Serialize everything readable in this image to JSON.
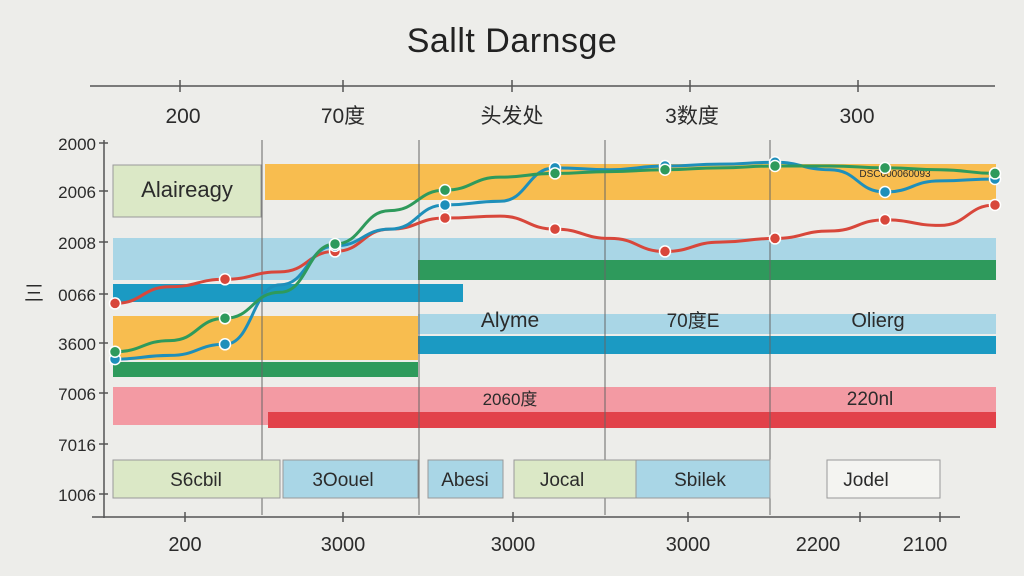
{
  "chart_data": {
    "type": "line",
    "title": "Sallt Darnsge",
    "top_labels": [
      "200",
      "70度",
      "头发处",
      "3数度",
      "300"
    ],
    "bottom_labels": [
      "200",
      "3000",
      "3000",
      "3000",
      "2200",
      "2100"
    ],
    "y_labels": [
      "2000",
      "2006",
      "2008",
      "0066",
      "3600",
      "7006",
      "7016",
      "1006"
    ],
    "y_side_mark": "三",
    "x": [
      0,
      1,
      2,
      3,
      4,
      5,
      6,
      7,
      8,
      9,
      10,
      11,
      12,
      13,
      14,
      15,
      16
    ],
    "series": [
      {
        "color": "#d8473b",
        "values": [
          2.6,
          3.05,
          3.25,
          3.45,
          4.0,
          4.6,
          4.9,
          4.95,
          4.6,
          4.35,
          4.0,
          4.25,
          4.35,
          4.55,
          4.85,
          4.7,
          5.25
        ]
      },
      {
        "color": "#1e8fba",
        "values": [
          1.1,
          1.2,
          1.5,
          3.1,
          4.15,
          4.6,
          5.25,
          5.35,
          6.25,
          6.2,
          6.3,
          6.35,
          6.4,
          6.2,
          5.6,
          5.9,
          5.95
        ]
      },
      {
        "color": "#2e9a5c",
        "values": [
          1.3,
          1.6,
          2.2,
          2.9,
          4.2,
          5.1,
          5.65,
          6.0,
          6.1,
          6.15,
          6.2,
          6.25,
          6.3,
          6.3,
          6.25,
          6.2,
          6.1
        ]
      }
    ],
    "band_labels": {
      "top_left": "Alaireagy",
      "top_right": "DSC000060093",
      "mid1": "Alyme",
      "mid2": "70度E",
      "mid3": "Olierg",
      "pink1": "2060度",
      "pink2": "220nl"
    },
    "box_labels": [
      "S6cbil",
      "3Oouel",
      "Abesi",
      "Jocal",
      "Sbilek",
      "Jodel"
    ],
    "colors": {
      "yellow": "#f9b434",
      "blue": "#a9d6e6",
      "blue_dark": "#1b9ac3",
      "green": "#2e9a5c",
      "pink": "#f39aa3",
      "red": "#e2424a",
      "box_green": "#dbe8c6"
    },
    "ylim": [
      0,
      7
    ]
  }
}
